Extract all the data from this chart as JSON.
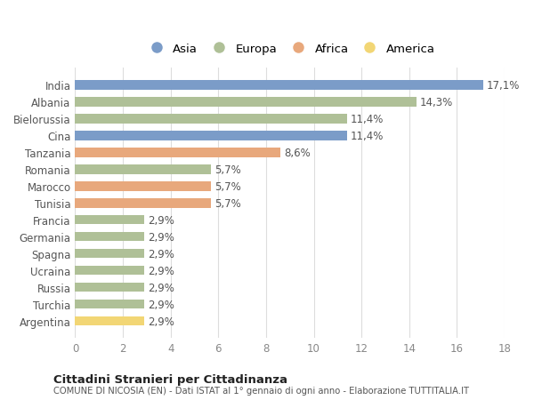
{
  "countries": [
    "India",
    "Albania",
    "Bielorussia",
    "Cina",
    "Tanzania",
    "Romania",
    "Marocco",
    "Tunisia",
    "Francia",
    "Germania",
    "Spagna",
    "Ucraina",
    "Russia",
    "Turchia",
    "Argentina"
  ],
  "values": [
    17.1,
    14.3,
    11.4,
    11.4,
    8.6,
    5.7,
    5.7,
    5.7,
    2.9,
    2.9,
    2.9,
    2.9,
    2.9,
    2.9,
    2.9
  ],
  "labels": [
    "17,1%",
    "14,3%",
    "11,4%",
    "11,4%",
    "8,6%",
    "5,7%",
    "5,7%",
    "5,7%",
    "2,9%",
    "2,9%",
    "2,9%",
    "2,9%",
    "2,9%",
    "2,9%",
    "2,9%"
  ],
  "continents": [
    "Asia",
    "Europa",
    "Europa",
    "Asia",
    "Africa",
    "Europa",
    "Africa",
    "Africa",
    "Europa",
    "Europa",
    "Europa",
    "Europa",
    "Europa",
    "Europa",
    "America"
  ],
  "colors": {
    "Asia": "#7b9cc8",
    "Europa": "#afc097",
    "Africa": "#e8a87c",
    "America": "#f2d675"
  },
  "legend_order": [
    "Asia",
    "Europa",
    "Africa",
    "America"
  ],
  "title1": "Cittadini Stranieri per Cittadinanza",
  "title2": "COMUNE DI NICOSIA (EN) - Dati ISTAT al 1° gennaio di ogni anno - Elaborazione TUTTITALIA.IT",
  "xlim": [
    0,
    18
  ],
  "xticks": [
    0,
    2,
    4,
    6,
    8,
    10,
    12,
    14,
    16,
    18
  ],
  "bg_color": "#ffffff",
  "grid_color": "#dddddd",
  "bar_height": 0.55,
  "label_fontsize": 8.5,
  "tick_fontsize": 8.5,
  "country_fontsize": 8.5
}
